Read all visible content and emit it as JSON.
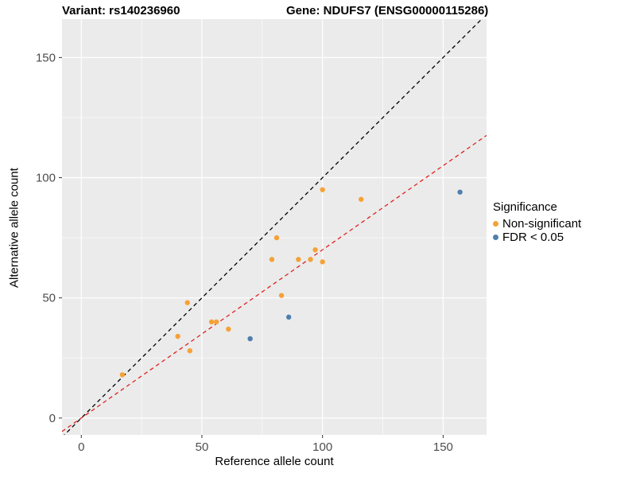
{
  "titles": {
    "left": "Variant: rs140236960",
    "right": "Gene: NDUFS7 (ENSG00000115286)"
  },
  "chart_data": {
    "type": "scatter",
    "title_left": "Variant: rs140236960",
    "title_right": "Gene: NDUFS7 (ENSG00000115286)",
    "xlabel": "Reference allele count",
    "ylabel": "Alternative allele count",
    "xlim": [
      -8,
      168
    ],
    "ylim": [
      -7,
      166
    ],
    "xticks": [
      0,
      50,
      100,
      150
    ],
    "yticks": [
      0,
      50,
      100,
      150
    ],
    "minor_ticks": [
      25,
      75,
      125
    ],
    "panel_bg": "#EBEBEB",
    "grid_color": "#FFFFFF",
    "tick_label_color": "#4D4D4D",
    "tick_mark_color": "#333333",
    "legend": {
      "title": "Significance",
      "entries": [
        {
          "label": "Non-significant",
          "color": "#F6A136"
        },
        {
          "label": "FDR < 0.05",
          "color": "#4F7FAC"
        }
      ]
    },
    "series": [
      {
        "name": "Non-significant",
        "color": "#F6A136",
        "points": [
          [
            17,
            18
          ],
          [
            40,
            34
          ],
          [
            45,
            28
          ],
          [
            44,
            48
          ],
          [
            54,
            40
          ],
          [
            56,
            40
          ],
          [
            61,
            37
          ],
          [
            79,
            66
          ],
          [
            81,
            75
          ],
          [
            83,
            51
          ],
          [
            90,
            66
          ],
          [
            95,
            66
          ],
          [
            97,
            70
          ],
          [
            100,
            95
          ],
          [
            100,
            65
          ],
          [
            116,
            91
          ]
        ]
      },
      {
        "name": "FDR < 0.05",
        "color": "#4F7FAC",
        "points": [
          [
            70,
            33
          ],
          [
            86,
            42
          ],
          [
            157,
            94
          ]
        ]
      }
    ],
    "lines": [
      {
        "name": "identity-line",
        "color": "#000000",
        "slope": 1.0,
        "intercept": 0,
        "dash": "5,4"
      },
      {
        "name": "regression-line",
        "color": "#E02220",
        "slope": 0.7,
        "intercept": 0,
        "dash": "5,4"
      }
    ]
  }
}
